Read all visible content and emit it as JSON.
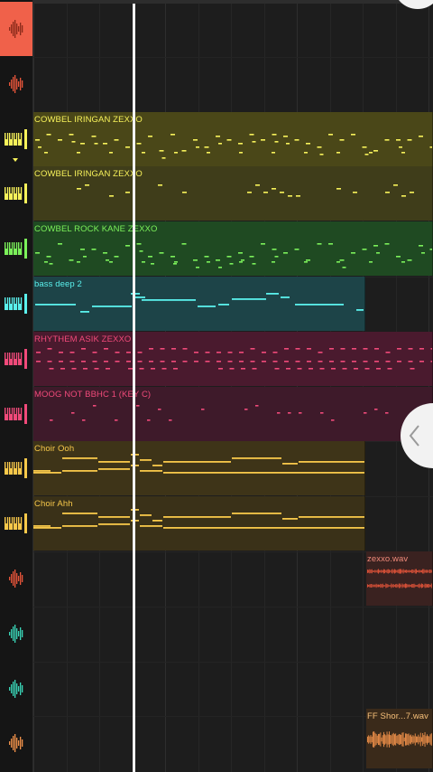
{
  "tracks": [
    {
      "id": "audio-1",
      "type": "audio",
      "color": "#f0614a",
      "selected": true
    },
    {
      "id": "audio-2",
      "type": "audio",
      "color": "#e8553a",
      "selected": false
    },
    {
      "id": "piano-1",
      "type": "piano",
      "color": "#f7f25a",
      "selected": false
    },
    {
      "id": "piano-2",
      "type": "piano",
      "color": "#f7f25a",
      "selected": false
    },
    {
      "id": "piano-3",
      "type": "piano",
      "color": "#7bf05a",
      "selected": false
    },
    {
      "id": "piano-4",
      "type": "piano",
      "color": "#5af0ec",
      "selected": false
    },
    {
      "id": "piano-5",
      "type": "piano",
      "color": "#f04a7a",
      "selected": false
    },
    {
      "id": "piano-6",
      "type": "piano",
      "color": "#f04a7a",
      "selected": false
    },
    {
      "id": "piano-7",
      "type": "piano",
      "color": "#f7c84a",
      "selected": false
    },
    {
      "id": "piano-8",
      "type": "piano",
      "color": "#f7c84a",
      "selected": false
    },
    {
      "id": "audio-3",
      "type": "audio",
      "color": "#e8553a",
      "selected": false
    },
    {
      "id": "audio-4",
      "type": "audio",
      "color": "#3ad6b8",
      "selected": false
    },
    {
      "id": "audio-5",
      "type": "audio",
      "color": "#3ad6b8",
      "selected": false
    },
    {
      "id": "audio-6",
      "type": "audio",
      "color": "#f0914a",
      "selected": false
    }
  ],
  "clips": [
    {
      "name": "COWBEL IRINGAN ZEXXO",
      "track": 2,
      "text_color": "#f7f25a",
      "bg": "#4a4718",
      "note_color": "#f7f25a",
      "pattern": "dense"
    },
    {
      "name": "COWBEL IRINGAN ZEXXO",
      "track": 3,
      "text_color": "#f7f25a",
      "bg": "#3f3d1a",
      "note_color": "#f7f25a",
      "pattern": "sparse"
    },
    {
      "name": "COWBEL ROCK KANE ZEXXO",
      "track": 4,
      "text_color": "#7bf05a",
      "bg": "#1f4a22",
      "note_color": "#7bf05a",
      "pattern": "dense"
    },
    {
      "name": "bass deep 2",
      "track": 5,
      "text_color": "#5af0ec",
      "bg": "#1d4448",
      "note_color": "#5af0ec",
      "pattern": "bass"
    },
    {
      "name": "RHYTHEM ASIK ZEXXO",
      "track": 6,
      "text_color": "#f04a7a",
      "bg": "#4a1a2e",
      "note_color": "#f04a7a",
      "pattern": "rhythm"
    },
    {
      "name": "MOOG NOT BBHC 1 (KEY C)",
      "track": 7,
      "text_color": "#f04a7a",
      "bg": "#3e1a2a",
      "note_color": "#f04a7a",
      "pattern": "moog"
    },
    {
      "name": "Choir Ooh",
      "track": 8,
      "text_color": "#f7c84a",
      "bg": "#3e3418",
      "note_color": "#f7c84a",
      "pattern": "choir"
    },
    {
      "name": "Choir Ahh",
      "track": 9,
      "text_color": "#f7c84a",
      "bg": "#3a3118",
      "note_color": "#f7c84a",
      "pattern": "choir"
    },
    {
      "name": "zexxo.wav",
      "track": 10,
      "text_color": "#f08a7a",
      "bg": "#3a2220",
      "note_color": "#e8553a",
      "pattern": "wave"
    },
    {
      "name": "FF Shor...7.wav",
      "track": 13,
      "text_color": "#f7c07a",
      "bg": "#3a2a1a",
      "note_color": "#f0914a",
      "pattern": "wave-big"
    }
  ]
}
